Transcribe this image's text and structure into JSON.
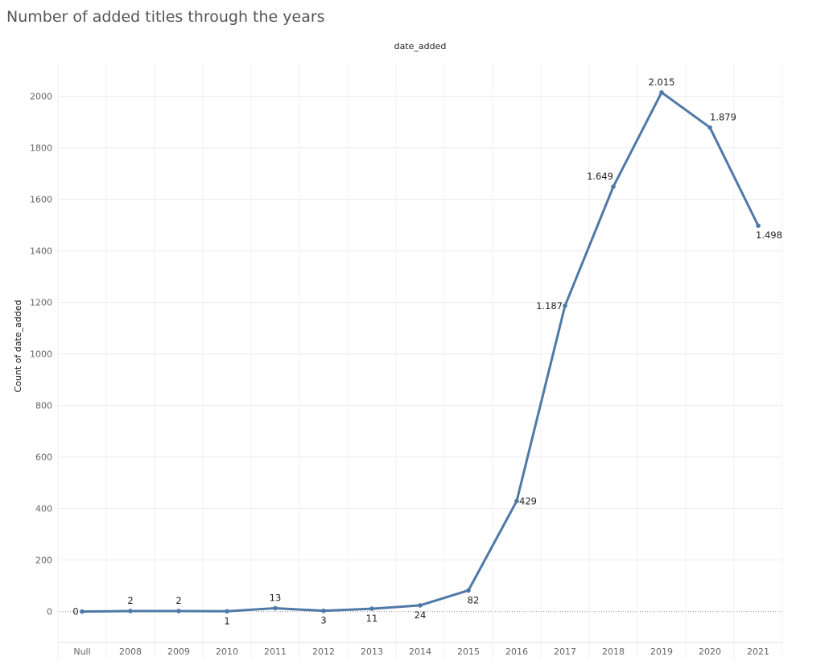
{
  "chart_data": {
    "type": "line",
    "title": "Number of added titles through the years",
    "header": "date_added",
    "xlabel": "",
    "ylabel": "Count of date_added",
    "categories": [
      "Null",
      "2008",
      "2009",
      "2010",
      "2011",
      "2012",
      "2013",
      "2014",
      "2015",
      "2016",
      "2017",
      "2018",
      "2019",
      "2020",
      "2021"
    ],
    "values": [
      0,
      2,
      2,
      1,
      13,
      3,
      11,
      24,
      82,
      429,
      1187,
      1649,
      2015,
      1879,
      1498
    ],
    "data_labels": [
      "0",
      "2",
      "2",
      "1",
      "13",
      "3",
      "11",
      "24",
      "82",
      "429",
      "1.187",
      "1.649",
      "2.015",
      "1.879",
      "1.498"
    ],
    "ylim": [
      -120,
      2130
    ],
    "yticks": [
      0,
      200,
      400,
      600,
      800,
      1000,
      1200,
      1400,
      1600,
      1800,
      2000
    ],
    "grid": true,
    "line_color": "#4e79a7"
  }
}
